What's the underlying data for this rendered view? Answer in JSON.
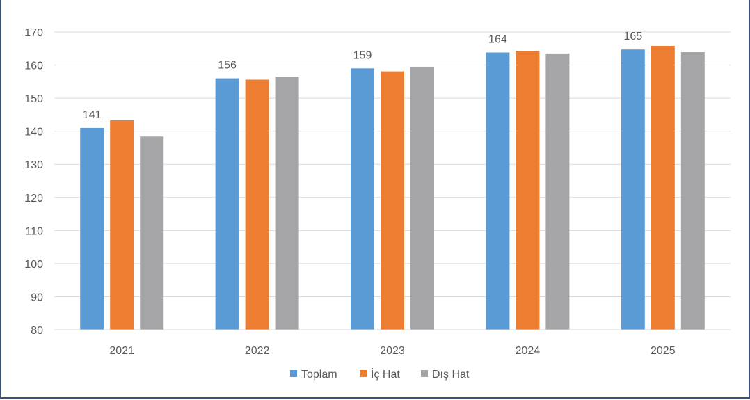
{
  "chart_data": {
    "type": "bar",
    "categories": [
      "2021",
      "2022",
      "2023",
      "2024",
      "2025"
    ],
    "series": [
      {
        "name": "Toplam",
        "color": "#5b9bd5",
        "values": [
          141,
          156,
          159,
          163.8,
          164.7
        ],
        "labels": [
          "141",
          "156",
          "159",
          "164",
          "165"
        ]
      },
      {
        "name": "İç Hat",
        "color": "#ed7d31",
        "values": [
          143.3,
          155.6,
          158.1,
          164.3,
          165.8
        ]
      },
      {
        "name": "Dış Hat",
        "color": "#a5a5a7",
        "values": [
          138.4,
          156.5,
          159.5,
          163.5,
          163.9
        ]
      }
    ],
    "ylim": [
      80,
      170
    ],
    "yticks": [
      80,
      90,
      100,
      110,
      120,
      130,
      140,
      150,
      160,
      170
    ],
    "grid": true,
    "legend": "bottom"
  }
}
